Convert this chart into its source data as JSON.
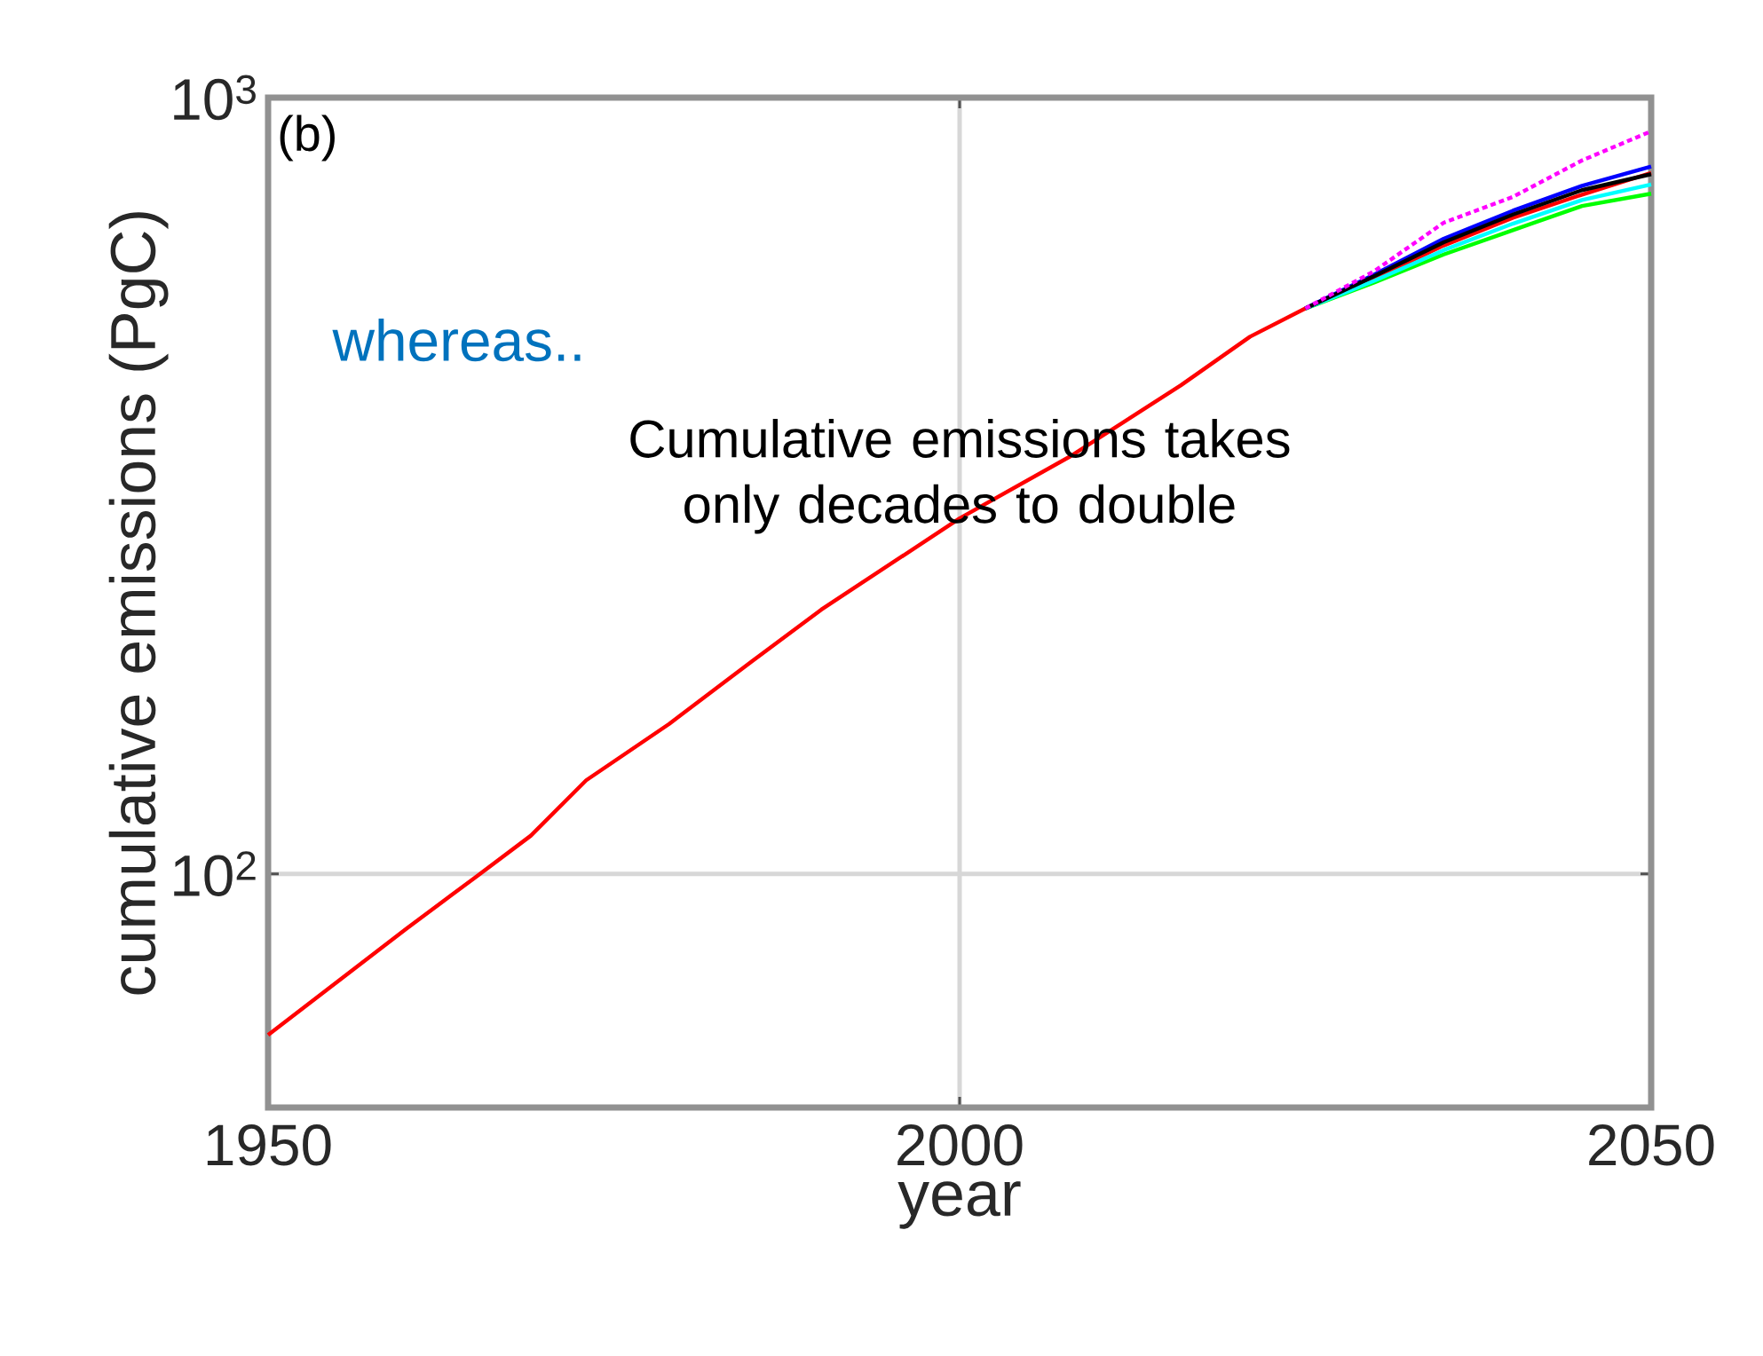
{
  "chart_data": {
    "type": "line",
    "xlabel": "year",
    "ylabel": "cumulative emissions (PgC)",
    "annotations": [
      "(b)",
      "whereas..",
      "Cumulative emissions takes only decades to double"
    ],
    "x": [
      1950,
      1960,
      1965,
      1969,
      1973,
      1979,
      1985,
      1990,
      2000,
      2008,
      2016,
      2021,
      2025,
      2030,
      2035,
      2040,
      2045,
      2050
    ],
    "series": [
      {
        "color": "#ff0000",
        "values": [
          62,
          85,
          99,
          112,
          132,
          156,
          188,
          219,
          287,
          345,
          426,
          492,
          535,
          585,
          645,
          700,
          750,
          800
        ]
      },
      {
        "color": "#00ff00",
        "values": [
          null,
          null,
          null,
          null,
          null,
          null,
          null,
          null,
          null,
          null,
          null,
          null,
          535,
          578,
          628,
          675,
          725,
          752
        ]
      },
      {
        "color": "#00ffff",
        "values": [
          null,
          null,
          null,
          null,
          null,
          null,
          null,
          null,
          null,
          null,
          null,
          null,
          535,
          581,
          636,
          688,
          738,
          773
        ]
      },
      {
        "color": "#0000ff",
        "values": [
          null,
          null,
          null,
          null,
          null,
          null,
          null,
          null,
          null,
          null,
          null,
          null,
          535,
          592,
          658,
          715,
          770,
          815
        ]
      },
      {
        "color": "#000000",
        "values": [
          null,
          null,
          null,
          null,
          null,
          null,
          null,
          null,
          null,
          null,
          null,
          null,
          535,
          589,
          651,
          707,
          760,
          797
        ]
      },
      {
        "color": "#ff00ff",
        "line_style": "dashed",
        "values": [
          null,
          null,
          null,
          null,
          null,
          null,
          null,
          null,
          null,
          null,
          null,
          null,
          535,
          598,
          690,
          745,
          830,
          905
        ]
      }
    ],
    "log": "y",
    "grid": true,
    "xlim": [
      1950,
      2050
    ],
    "xticks": [
      1950,
      2000,
      2050
    ],
    "ylim": [
      50,
      1000
    ],
    "yticks": [
      {
        "value": 100,
        "label": "10$^{2}$"
      },
      {
        "value": 1000,
        "label": "10$^{3}$"
      }
    ]
  }
}
